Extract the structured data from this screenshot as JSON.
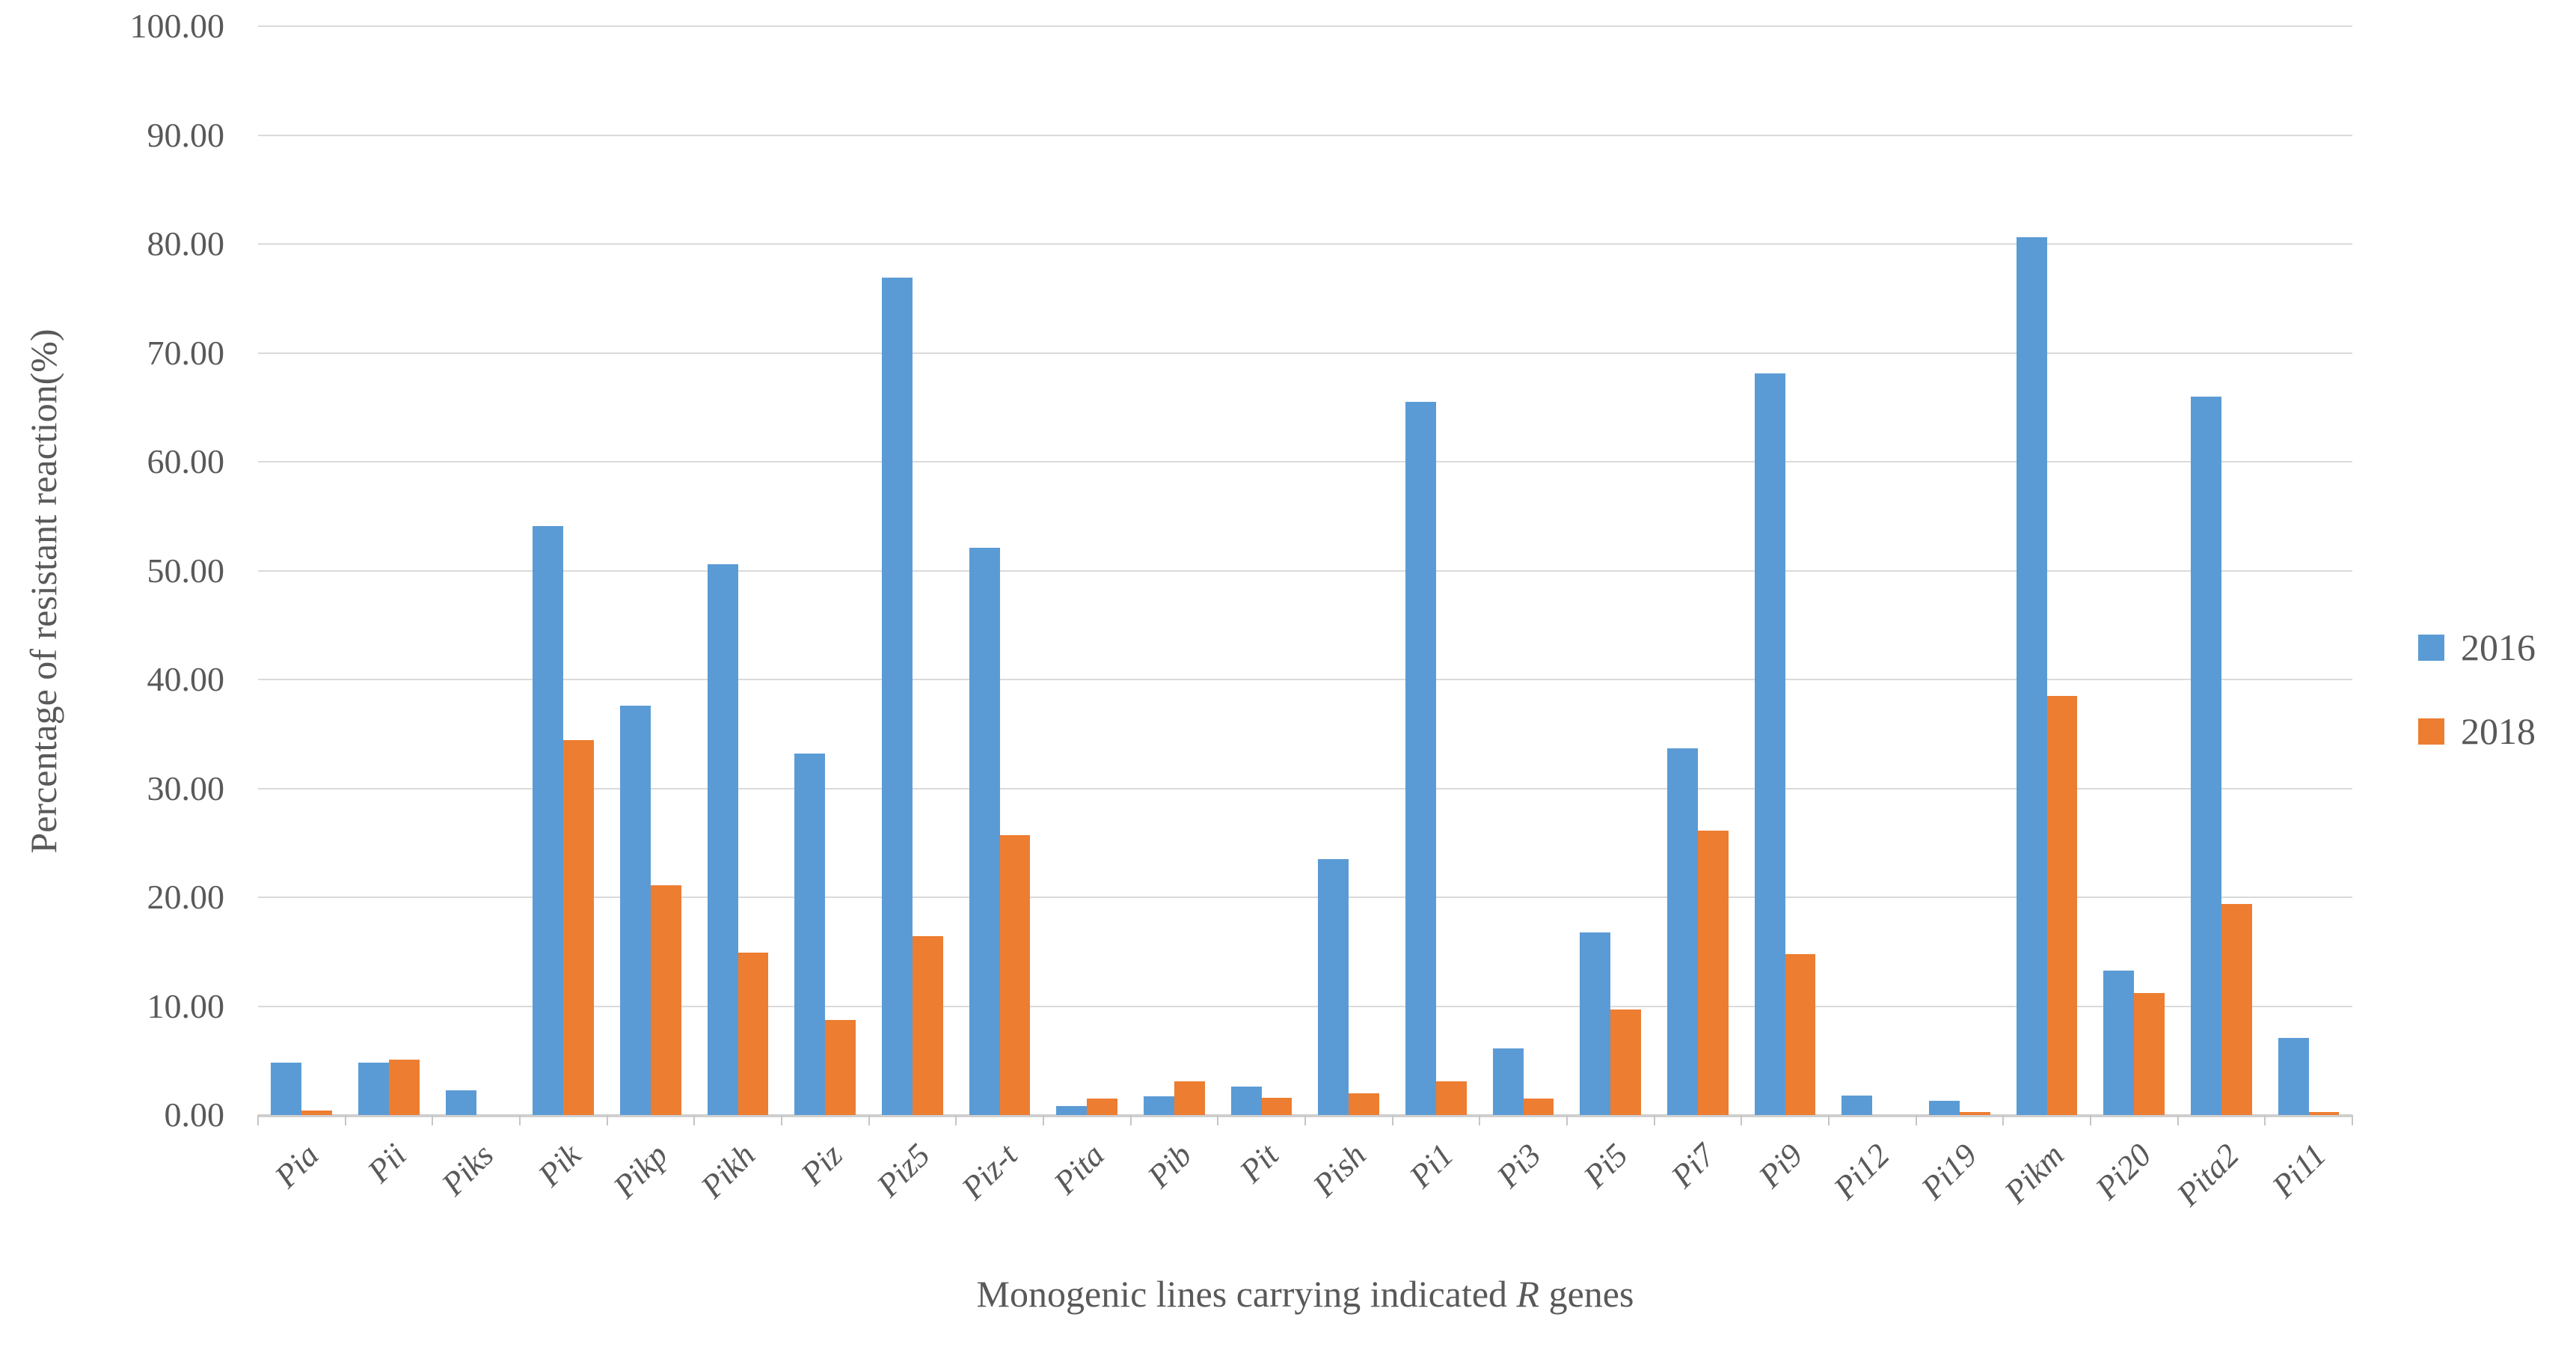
{
  "chart_data": {
    "type": "bar",
    "title": "",
    "xlabel": "Monogenic lines carrying indicated R genes",
    "xlabel_parts": [
      "Monogenic lines carrying indicated ",
      "R",
      " genes"
    ],
    "ylabel": "Percentage of resistant reaction(%)",
    "ylim": [
      0,
      100
    ],
    "ytick_step": 10,
    "yticks": [
      "100.00",
      "90.00",
      "80.00",
      "70.00",
      "60.00",
      "50.00",
      "40.00",
      "30.00",
      "20.00",
      "10.00",
      "0.00"
    ],
    "grid": true,
    "legend_position": "right",
    "categories": [
      "Pia",
      "Pii",
      "Piks",
      "Pik",
      "Pikp",
      "Pikh",
      "Piz",
      "Piz5",
      "Piz-t",
      "Pita",
      "Pib",
      "Pit",
      "Pish",
      "Pi1",
      "Pi3",
      "Pi5",
      "Pi7",
      "Pi9",
      "Pi12",
      "Pi19",
      "Pikm",
      "Pi20",
      "Pita2",
      "Pi11"
    ],
    "series": [
      {
        "name": "2016",
        "color": "#5b9bd5",
        "values": [
          4.8,
          4.8,
          2.3,
          54.1,
          37.6,
          50.6,
          33.2,
          76.9,
          52.1,
          0.8,
          1.7,
          2.6,
          23.5,
          65.5,
          6.1,
          16.8,
          33.7,
          68.1,
          1.8,
          1.3,
          80.6,
          13.3,
          66.0,
          7.1
        ]
      },
      {
        "name": "2018",
        "color": "#ed7d31",
        "values": [
          0.4,
          5.1,
          0,
          34.4,
          21.1,
          14.9,
          8.7,
          16.4,
          25.7,
          1.5,
          3.1,
          1.6,
          2.0,
          3.1,
          1.5,
          9.7,
          26.1,
          14.8,
          0,
          0.3,
          38.5,
          11.2,
          19.4,
          0.3
        ]
      }
    ],
    "colors": {
      "grid": "#dadada",
      "axis_line": "#cfcfcf",
      "text": "#595959"
    }
  }
}
